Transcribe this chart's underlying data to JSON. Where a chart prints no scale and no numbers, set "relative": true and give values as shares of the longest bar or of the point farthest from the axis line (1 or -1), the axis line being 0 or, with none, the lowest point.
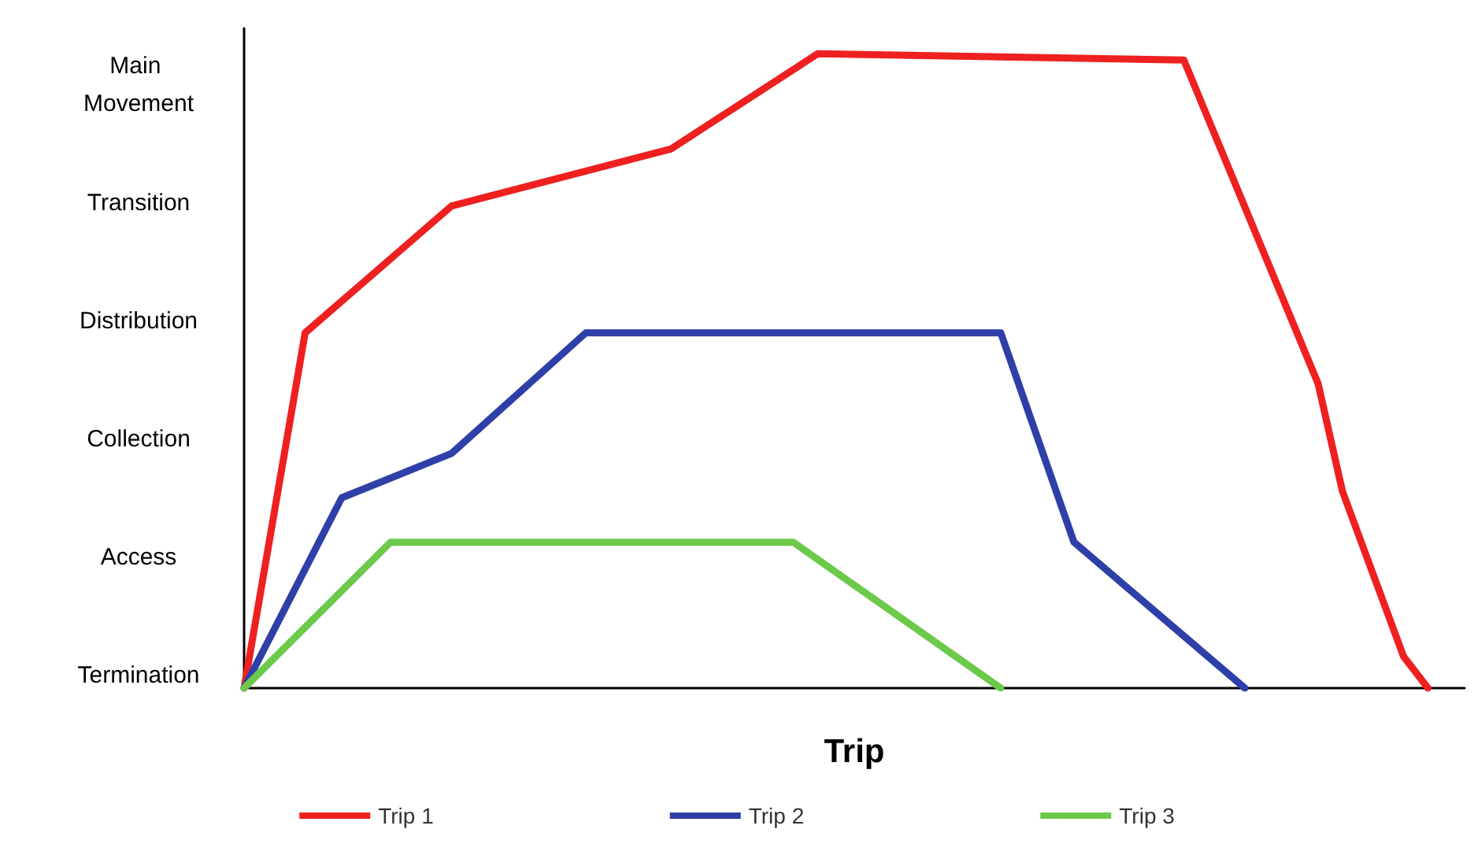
{
  "chart_data": {
    "type": "line",
    "xlabel": "Trip",
    "relative": true,
    "categories": [
      null,
      null,
      null,
      null,
      null,
      null,
      null,
      null,
      null,
      null,
      null,
      null,
      null,
      null,
      null,
      null,
      null,
      null,
      null,
      null,
      null,
      null,
      null,
      null,
      null,
      null,
      null,
      null,
      null,
      null,
      null,
      null,
      null,
      null,
      null,
      null,
      null,
      null,
      null,
      null,
      null,
      null,
      null,
      null,
      null,
      null,
      null,
      null,
      null,
      null,
      null,
      null,
      null,
      null,
      null,
      null,
      null,
      null,
      null,
      null,
      null,
      null,
      null,
      null,
      null,
      null,
      null,
      null,
      null,
      null,
      null,
      null,
      null,
      null,
      null,
      null,
      null,
      null,
      null,
      null,
      null,
      null,
      null,
      null,
      null,
      null,
      null,
      null,
      null,
      null,
      null,
      null,
      null,
      null,
      null,
      null,
      null,
      null,
      null,
      null,
      null
    ],
    "annotations": [
      "Termination",
      "Access",
      "Collection",
      "Distribution",
      "Transition",
      "Main Movement"
    ],
    "legend": "bottom",
    "marker": "none",
    "line_style": "solid",
    "series": [
      {
        "name": "Trip 1",
        "color": "#ee2020",
        "values": [
          0,
          null,
          null,
          null,
          null,
          0.56,
          null,
          null,
          null,
          null,
          null,
          null,
          null,
          null,
          null,
          null,
          null,
          0.76,
          null,
          null,
          null,
          null,
          null,
          null,
          null,
          null,
          null,
          null,
          null,
          null,
          null,
          null,
          null,
          null,
          null,
          0.85,
          null,
          null,
          null,
          null,
          null,
          null,
          null,
          null,
          null,
          null,
          null,
          1,
          null,
          null,
          null,
          null,
          null,
          null,
          null,
          null,
          null,
          null,
          null,
          null,
          null,
          null,
          null,
          null,
          null,
          null,
          null,
          null,
          null,
          null,
          null,
          null,
          null,
          null,
          null,
          null,
          null,
          0.99,
          null,
          null,
          null,
          null,
          null,
          null,
          null,
          null,
          null,
          null,
          0.48,
          null,
          0.31,
          null,
          null,
          null,
          null,
          0.05,
          null,
          0,
          null,
          null,
          null
        ]
      },
      {
        "name": "Trip 2",
        "color": "#2e3fa8",
        "values": [
          0,
          null,
          null,
          null,
          null,
          null,
          null,
          null,
          0.3,
          null,
          null,
          null,
          null,
          null,
          null,
          null,
          null,
          0.37,
          null,
          null,
          null,
          null,
          null,
          null,
          null,
          null,
          null,
          null,
          0.56,
          null,
          null,
          null,
          null,
          null,
          null,
          null,
          null,
          null,
          null,
          null,
          null,
          null,
          null,
          null,
          null,
          null,
          null,
          null,
          null,
          null,
          null,
          null,
          null,
          null,
          null,
          null,
          null,
          null,
          null,
          null,
          null,
          null,
          0.56,
          null,
          null,
          null,
          null,
          null,
          0.23,
          null,
          null,
          null,
          null,
          null,
          null,
          null,
          null,
          null,
          null,
          null,
          null,
          null,
          0,
          null,
          null,
          null,
          null,
          null,
          null,
          null,
          null,
          null,
          null,
          null,
          null,
          null,
          null,
          null,
          null,
          null,
          null
        ]
      },
      {
        "name": "Trip 3",
        "color": "#6cc94a",
        "values": [
          0,
          null,
          null,
          null,
          null,
          null,
          null,
          null,
          null,
          null,
          null,
          null,
          0.23,
          null,
          null,
          null,
          null,
          null,
          null,
          null,
          null,
          null,
          null,
          null,
          null,
          null,
          null,
          null,
          null,
          null,
          null,
          null,
          null,
          null,
          null,
          null,
          null,
          null,
          null,
          null,
          null,
          null,
          null,
          null,
          null,
          0.23,
          null,
          null,
          null,
          null,
          null,
          null,
          null,
          null,
          null,
          null,
          null,
          null,
          null,
          null,
          null,
          null,
          0,
          null,
          null,
          null,
          null,
          null,
          null,
          null,
          null,
          null,
          null,
          null,
          null,
          null,
          null,
          null,
          null,
          null,
          null,
          null,
          null,
          null,
          null,
          null,
          null,
          null,
          null,
          null,
          null,
          null,
          null,
          null,
          null,
          null,
          null,
          null,
          null,
          null,
          null
        ]
      }
    ]
  }
}
